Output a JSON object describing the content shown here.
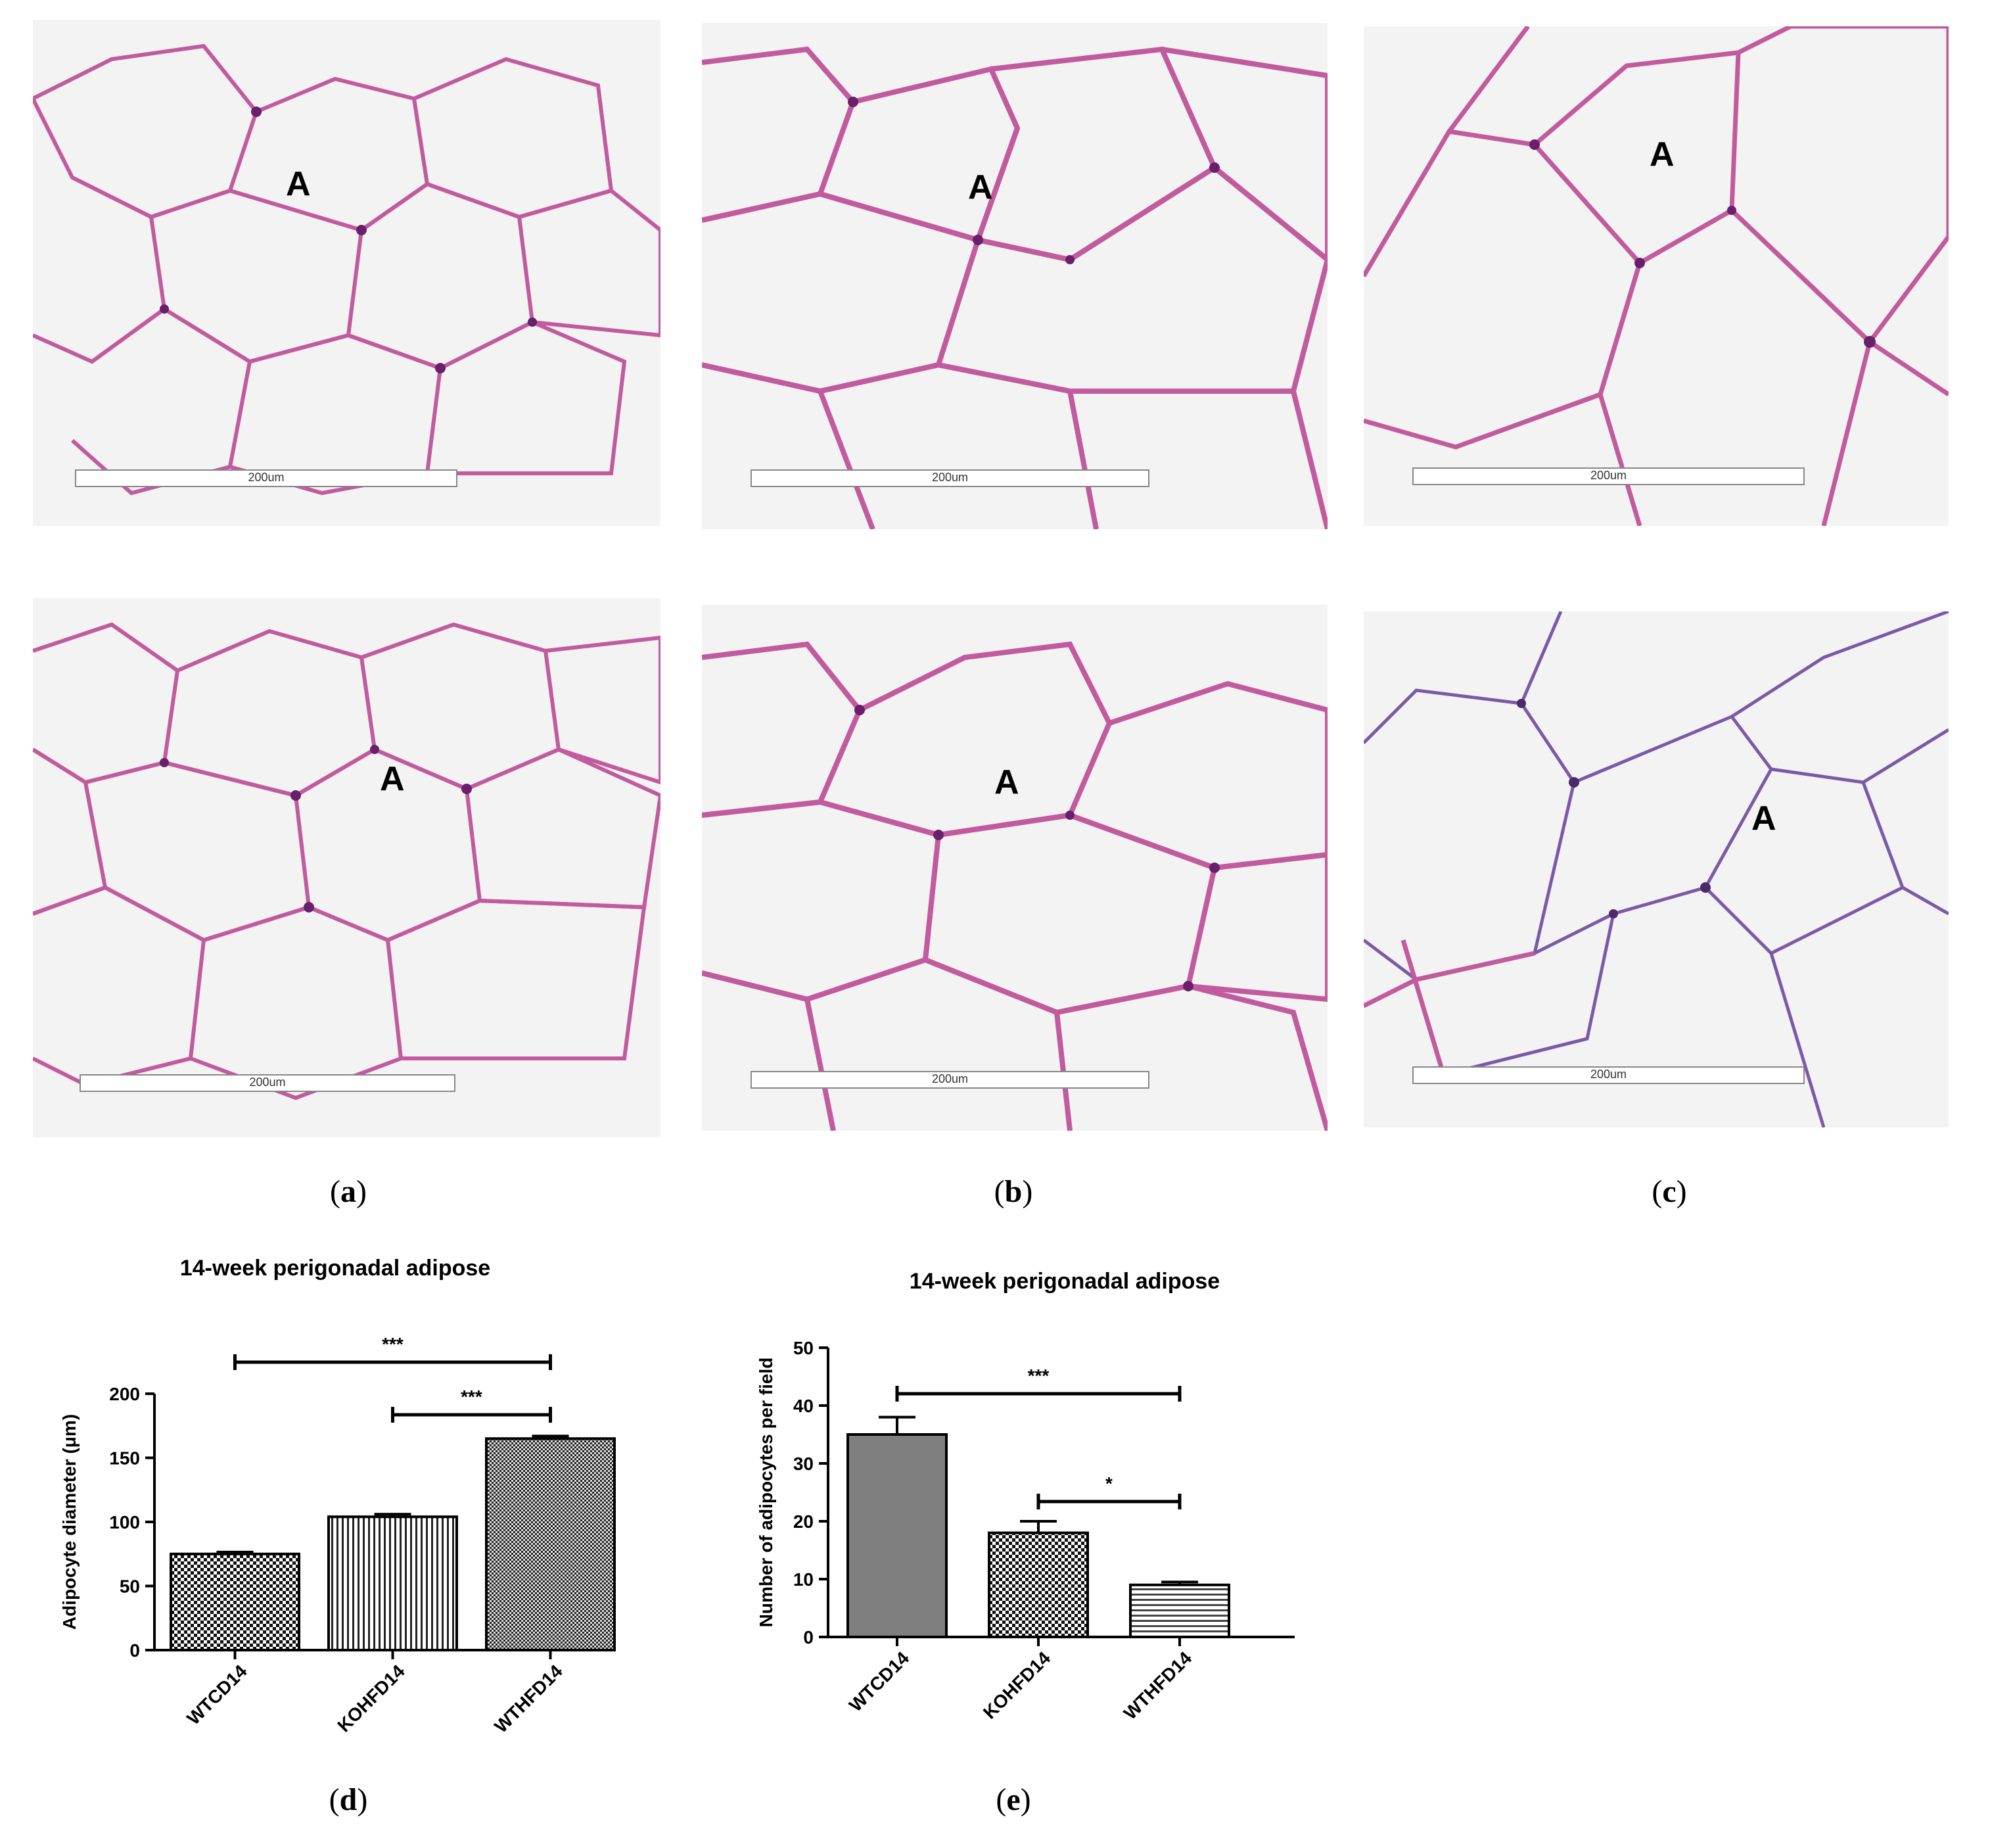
{
  "panels": [
    {
      "id": "a-top",
      "letter": "A",
      "scale_label": "200um"
    },
    {
      "id": "b-top",
      "letter": "A",
      "scale_label": "200um"
    },
    {
      "id": "c-top",
      "letter": "A",
      "scale_label": "200um"
    },
    {
      "id": "a-bottom",
      "letter": "A",
      "scale_label": "200um"
    },
    {
      "id": "b-bottom",
      "letter": "A",
      "scale_label": "200um"
    },
    {
      "id": "c-bottom",
      "letter": "A",
      "scale_label": "200um"
    }
  ],
  "labels": {
    "a": "a",
    "b": "b",
    "c": "c",
    "d": "d",
    "e": "e"
  },
  "colors": {
    "membrane": "#c25a9e",
    "nucleus": "#6a1f6a",
    "cell_fill": "#f3f3f3",
    "bar_dark": "#7f7f7f"
  },
  "chart_data": [
    {
      "type": "bar",
      "title": "14-week perigonadal adipose",
      "categories": [
        "WTCD14",
        "KOHFD14",
        "WTHFD14"
      ],
      "values": [
        75,
        104,
        165
      ],
      "errors": [
        1.5,
        2,
        2
      ],
      "ylabel": "Adipocyte diameter (μm)",
      "ylim": [
        0,
        200
      ],
      "yticks": [
        0,
        50,
        100,
        150,
        200
      ],
      "patterns": [
        "checker",
        "vertical-lines",
        "fine-checker"
      ],
      "significance": [
        {
          "from": 0,
          "to": 2,
          "label": "***"
        },
        {
          "from": 1,
          "to": 2,
          "label": "***"
        }
      ]
    },
    {
      "type": "bar",
      "title": "14-week perigonadal adipose",
      "categories": [
        "WTCD14",
        "KOHFD14",
        "WTHFD14"
      ],
      "values": [
        35,
        18,
        9
      ],
      "errors": [
        3,
        2,
        0.5
      ],
      "ylabel": "Number of adipocytes per field",
      "ylim": [
        0,
        50
      ],
      "yticks": [
        0,
        10,
        20,
        30,
        40,
        50
      ],
      "patterns": [
        "solid-gray",
        "checker",
        "horizontal-lines"
      ],
      "significance": [
        {
          "from": 0,
          "to": 2,
          "label": "***"
        },
        {
          "from": 1,
          "to": 2,
          "label": "*"
        }
      ]
    }
  ]
}
